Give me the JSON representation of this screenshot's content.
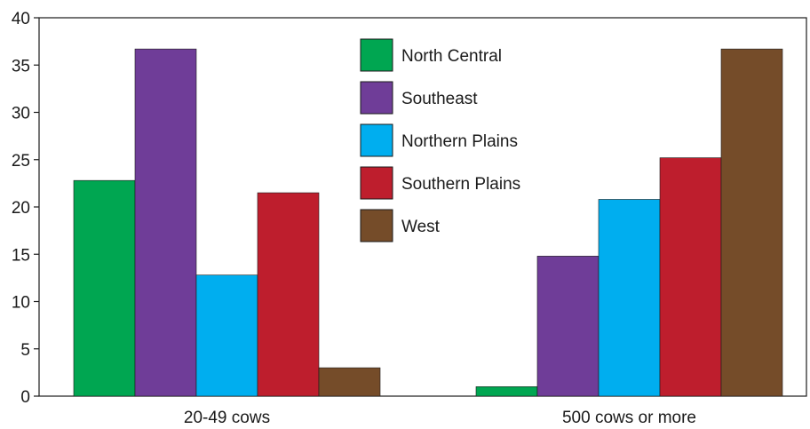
{
  "chart_data": {
    "type": "bar",
    "categories": [
      "20-49 cows",
      "500 cows or more"
    ],
    "series": [
      {
        "name": "North Central",
        "color": "#00a651",
        "values": [
          22.8,
          1.0
        ]
      },
      {
        "name": "Southeast",
        "color": "#6f3d98",
        "values": [
          36.7,
          14.8
        ]
      },
      {
        "name": "Northern Plains",
        "color": "#00aeef",
        "values": [
          12.8,
          20.8
        ]
      },
      {
        "name": "Southern Plains",
        "color": "#be1e2d",
        "values": [
          21.5,
          25.2
        ]
      },
      {
        "name": "West",
        "color": "#754c29",
        "values": [
          3.0,
          36.7
        ]
      }
    ],
    "yticks": [
      0,
      5,
      10,
      15,
      20,
      25,
      30,
      35,
      40
    ],
    "ylim": [
      0,
      40
    ],
    "xlabel": "",
    "ylabel": "",
    "title": "",
    "grid": false,
    "legend_position": "top-center"
  }
}
